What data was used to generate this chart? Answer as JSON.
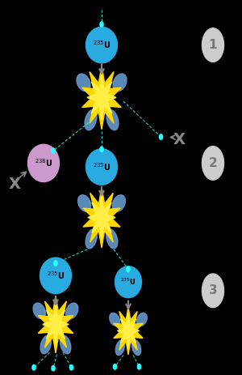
{
  "bg_color": "#000000",
  "uranium235_color": "#29ABE2",
  "uranium238_color": "#CC99CC",
  "neutron_color": "#29FFFF",
  "explosion_color": "#FFD700",
  "fragment_color": "#6699CC",
  "arrow_color": "#888888",
  "step_circle_color": "#CCCCCC",
  "step_text_color": "#777777",
  "x_color": "#888888"
}
